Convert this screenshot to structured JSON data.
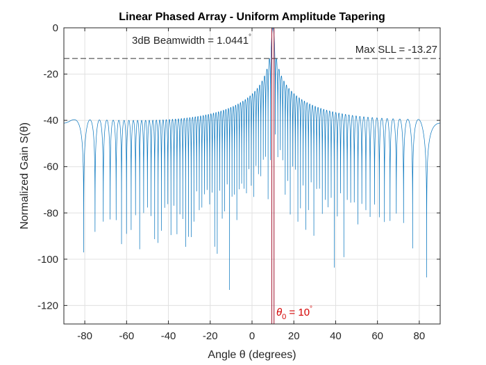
{
  "chart_data": {
    "type": "line",
    "title": "Linear Phased Array - Uniform Amplitude Tapering",
    "xlabel": "Angle θ (degrees)",
    "ylabel": "Normalized Gain S(θ)",
    "xlim": [
      -90,
      90
    ],
    "ylim": [
      -128,
      0
    ],
    "xticks": [
      -80,
      -60,
      -40,
      -20,
      0,
      20,
      40,
      60,
      80
    ],
    "yticks": [
      0,
      -20,
      -40,
      -60,
      -80,
      -100,
      -120
    ],
    "grid": true,
    "legend": "none",
    "pattern": {
      "taper": "uniform",
      "steer_angle_deg": 10,
      "beamwidth_3db_deg": 1.0441,
      "max_sll_db": -13.27,
      "floor_db": -128
    },
    "series": [
      {
        "color": "#0072BD"
      }
    ],
    "annotations": {
      "beamwidth_text": "3dB Beamwidth = 1.0441",
      "beamwidth_deg_mark": "°",
      "sll_text": "Max SLL = -13.27",
      "steer_theta": "θ",
      "steer_sub": "0",
      "steer_value": " = 10",
      "steer_deg_mark": "°"
    },
    "colors": {
      "pattern_line": "#0072BD",
      "steer_lines": "#A2142F",
      "steer_label": "#d40000",
      "sll_line": "#333333",
      "grid": "#e0e0e0",
      "axes": "#262626"
    }
  }
}
